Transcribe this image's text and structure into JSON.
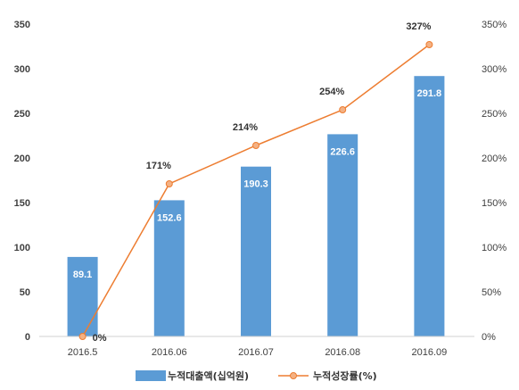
{
  "chart_data": {
    "type": "bar",
    "categories": [
      "2016.5",
      "2016.06",
      "2016.07",
      "2016.08",
      "2016.09"
    ],
    "series": [
      {
        "name": "누적대출액(십억원)",
        "type": "bar",
        "axis": "left",
        "color": "#5b9bd5",
        "values": [
          89.1,
          152.6,
          190.3,
          226.6,
          291.8
        ],
        "labels": [
          "89.1",
          "152.6",
          "190.3",
          "226.6",
          "291.8"
        ]
      },
      {
        "name": "누적성장률(%)",
        "type": "line",
        "axis": "right",
        "color": "#ed7d31",
        "values": [
          0,
          171,
          214,
          254,
          327
        ],
        "labels": [
          "0%",
          "171%",
          "214%",
          "254%",
          "327%"
        ]
      }
    ],
    "y_left": {
      "range": [
        0,
        350
      ],
      "ticks": [
        "0",
        "50",
        "100",
        "150",
        "200",
        "250",
        "300",
        "350"
      ]
    },
    "y_right": {
      "range": [
        0,
        350
      ],
      "ticks": [
        "0%",
        "50%",
        "100%",
        "150%",
        "200%",
        "250%",
        "300%",
        "350%"
      ]
    },
    "grid": false,
    "legend_position": "bottom"
  }
}
